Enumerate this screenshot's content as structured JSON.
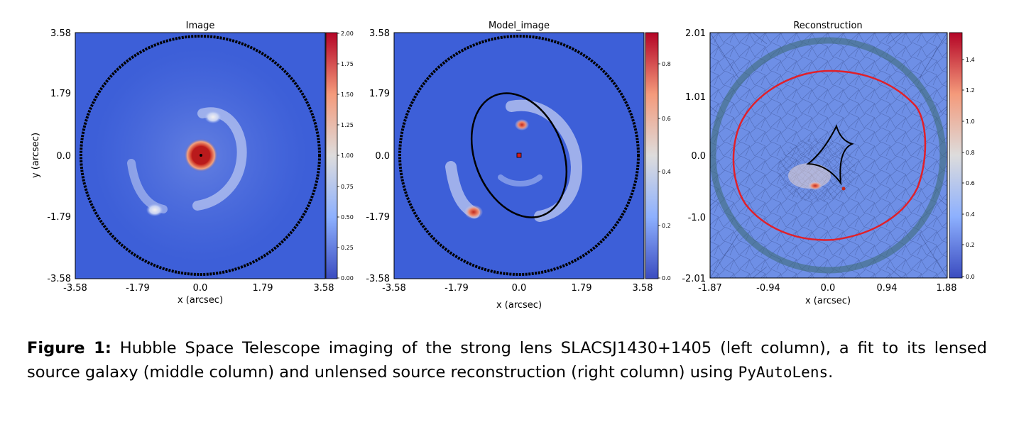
{
  "panels": [
    {
      "title": "Image",
      "xticks": [
        "-3.58",
        "-1.79",
        "0.0",
        "1.79",
        "3.58"
      ],
      "yticks": [
        "3.58",
        "1.79",
        "0.0",
        "-1.79",
        "-3.58"
      ],
      "xlabel": "x (arcsec)",
      "ylabel": "y (arcsec)",
      "cbar_ticks": [
        "2.00",
        "1.75",
        "1.50",
        "1.25",
        "1.00",
        "0.75",
        "0.50",
        "0.25",
        "0.00"
      ]
    },
    {
      "title": "Model_image",
      "xticks": [
        "-3.58",
        "-1.79",
        "0.0",
        "1.79",
        "3.58"
      ],
      "yticks": [
        "3.58",
        "1.79",
        "0.0",
        "-1.79",
        "-3.58"
      ],
      "xlabel": "x (arcsec)",
      "cbar_ticks": [
        "0.8",
        "0.6",
        "0.4",
        "0.2",
        "0.0"
      ]
    },
    {
      "title": "Reconstruction",
      "xticks": [
        "-1.87",
        "-0.94",
        "0.0",
        "0.94",
        "1.88"
      ],
      "yticks": [
        "2.01",
        "1.01",
        "0.0",
        "-1.0",
        "-2.01"
      ],
      "xlabel": "x (arcsec)",
      "cbar_ticks": [
        "1.4",
        "1.2",
        "1.0",
        "0.8",
        "0.6",
        "0.4",
        "0.2",
        "0.0"
      ]
    }
  ],
  "colors": {
    "background": "#3d5fd8",
    "peak": "#c0281c",
    "curve": "#e0202a"
  },
  "caption": {
    "label": "Figure 1:",
    "text": " Hubble Space Telescope imaging of the strong lens SLACSJ1430+1405 (left column), a fit to its lensed source galaxy (middle column) and unlensed source reconstruction (right column) using ",
    "code": "PyAutoLens",
    "end": "."
  }
}
